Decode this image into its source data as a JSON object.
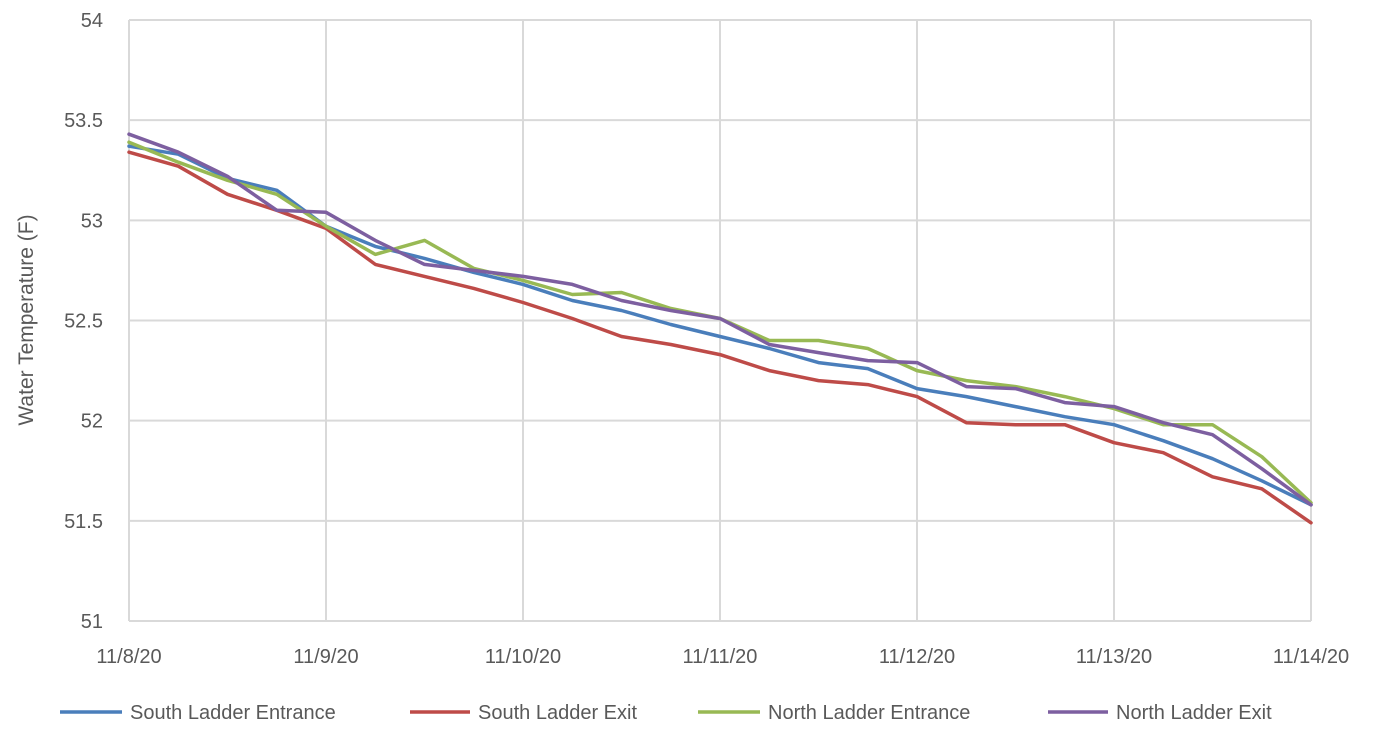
{
  "chart_data": {
    "type": "line",
    "title": "",
    "xlabel": "",
    "ylabel": "Water Temperature (F)",
    "x_ticks": [
      "11/8/20",
      "11/9/20",
      "11/10/20",
      "11/11/20",
      "11/12/20",
      "11/13/20",
      "11/14/20"
    ],
    "y_ticks": [
      "51",
      "51.5",
      "52",
      "52.5",
      "53",
      "53.5",
      "54"
    ],
    "ylim": [
      51,
      54
    ],
    "xlim": [
      "11/8/20",
      "11/14/20"
    ],
    "grid": true,
    "legend_position": "bottom",
    "series": [
      {
        "name": "South Ladder Entrance",
        "color": "#4a7ebb",
        "points": [
          [
            "11/8/20 00:00",
            53.37
          ],
          [
            "11/8/20 06:00",
            53.33
          ],
          [
            "11/8/20 12:00",
            53.21
          ],
          [
            "11/8/20 18:00",
            53.15
          ],
          [
            "11/9/20 00:00",
            52.97
          ],
          [
            "11/9/20 06:00",
            52.87
          ],
          [
            "11/9/20 12:00",
            52.81
          ],
          [
            "11/9/20 18:00",
            52.74
          ],
          [
            "11/10/20 00:00",
            52.68
          ],
          [
            "11/10/20 06:00",
            52.6
          ],
          [
            "11/10/20 12:00",
            52.55
          ],
          [
            "11/10/20 18:00",
            52.48
          ],
          [
            "11/11/20 00:00",
            52.42
          ],
          [
            "11/11/20 06:00",
            52.36
          ],
          [
            "11/11/20 12:00",
            52.29
          ],
          [
            "11/11/20 18:00",
            52.26
          ],
          [
            "11/12/20 00:00",
            52.16
          ],
          [
            "11/12/20 06:00",
            52.12
          ],
          [
            "11/12/20 12:00",
            52.07
          ],
          [
            "11/12/20 18:00",
            52.02
          ],
          [
            "11/13/20 00:00",
            51.98
          ],
          [
            "11/13/20 06:00",
            51.9
          ],
          [
            "11/13/20 12:00",
            51.81
          ],
          [
            "11/13/20 18:00",
            51.7
          ],
          [
            "11/14/20 00:00",
            51.58
          ]
        ]
      },
      {
        "name": "South Ladder Exit",
        "color": "#be4b48",
        "points": [
          [
            "11/8/20 00:00",
            53.34
          ],
          [
            "11/8/20 06:00",
            53.27
          ],
          [
            "11/8/20 12:00",
            53.13
          ],
          [
            "11/8/20 18:00",
            53.05
          ],
          [
            "11/9/20 00:00",
            52.96
          ],
          [
            "11/9/20 06:00",
            52.78
          ],
          [
            "11/9/20 12:00",
            52.72
          ],
          [
            "11/9/20 18:00",
            52.66
          ],
          [
            "11/10/20 00:00",
            52.59
          ],
          [
            "11/10/20 06:00",
            52.51
          ],
          [
            "11/10/20 12:00",
            52.42
          ],
          [
            "11/10/20 18:00",
            52.38
          ],
          [
            "11/11/20 00:00",
            52.33
          ],
          [
            "11/11/20 06:00",
            52.25
          ],
          [
            "11/11/20 12:00",
            52.2
          ],
          [
            "11/11/20 18:00",
            52.18
          ],
          [
            "11/12/20 00:00",
            52.12
          ],
          [
            "11/12/20 06:00",
            51.99
          ],
          [
            "11/12/20 12:00",
            51.98
          ],
          [
            "11/12/20 18:00",
            51.98
          ],
          [
            "11/13/20 00:00",
            51.89
          ],
          [
            "11/13/20 06:00",
            51.84
          ],
          [
            "11/13/20 12:00",
            51.72
          ],
          [
            "11/13/20 18:00",
            51.66
          ],
          [
            "11/14/20 00:00",
            51.49
          ]
        ]
      },
      {
        "name": "North Ladder Entrance",
        "color": "#98b954",
        "points": [
          [
            "11/8/20 00:00",
            53.39
          ],
          [
            "11/8/20 06:00",
            53.29
          ],
          [
            "11/8/20 12:00",
            53.2
          ],
          [
            "11/8/20 18:00",
            53.13
          ],
          [
            "11/9/20 00:00",
            52.97
          ],
          [
            "11/9/20 06:00",
            52.83
          ],
          [
            "11/9/20 12:00",
            52.9
          ],
          [
            "11/9/20 18:00",
            52.76
          ],
          [
            "11/10/20 00:00",
            52.7
          ],
          [
            "11/10/20 06:00",
            52.63
          ],
          [
            "11/10/20 12:00",
            52.64
          ],
          [
            "11/10/20 18:00",
            52.56
          ],
          [
            "11/11/20 00:00",
            52.51
          ],
          [
            "11/11/20 06:00",
            52.4
          ],
          [
            "11/11/20 12:00",
            52.4
          ],
          [
            "11/11/20 18:00",
            52.36
          ],
          [
            "11/12/20 00:00",
            52.25
          ],
          [
            "11/12/20 06:00",
            52.2
          ],
          [
            "11/12/20 12:00",
            52.17
          ],
          [
            "11/12/20 18:00",
            52.12
          ],
          [
            "11/13/20 00:00",
            52.06
          ],
          [
            "11/13/20 06:00",
            51.98
          ],
          [
            "11/13/20 12:00",
            51.98
          ],
          [
            "11/13/20 18:00",
            51.82
          ],
          [
            "11/14/20 00:00",
            51.59
          ]
        ]
      },
      {
        "name": "North Ladder Exit",
        "color": "#7d5fa0",
        "points": [
          [
            "11/8/20 00:00",
            53.43
          ],
          [
            "11/8/20 06:00",
            53.34
          ],
          [
            "11/8/20 12:00",
            53.22
          ],
          [
            "11/8/20 18:00",
            53.05
          ],
          [
            "11/9/20 00:00",
            53.04
          ],
          [
            "11/9/20 06:00",
            52.9
          ],
          [
            "11/9/20 12:00",
            52.78
          ],
          [
            "11/9/20 18:00",
            52.75
          ],
          [
            "11/10/20 00:00",
            52.72
          ],
          [
            "11/10/20 06:00",
            52.68
          ],
          [
            "11/10/20 12:00",
            52.6
          ],
          [
            "11/10/20 18:00",
            52.55
          ],
          [
            "11/11/20 00:00",
            52.51
          ],
          [
            "11/11/20 06:00",
            52.38
          ],
          [
            "11/11/20 12:00",
            52.34
          ],
          [
            "11/11/20 18:00",
            52.3
          ],
          [
            "11/12/20 00:00",
            52.29
          ],
          [
            "11/12/20 06:00",
            52.17
          ],
          [
            "11/12/20 12:00",
            52.16
          ],
          [
            "11/12/20 18:00",
            52.09
          ],
          [
            "11/13/20 00:00",
            52.07
          ],
          [
            "11/13/20 06:00",
            51.99
          ],
          [
            "11/13/20 12:00",
            51.93
          ],
          [
            "11/13/20 18:00",
            51.76
          ],
          [
            "11/14/20 00:00",
            51.58
          ]
        ]
      }
    ]
  }
}
